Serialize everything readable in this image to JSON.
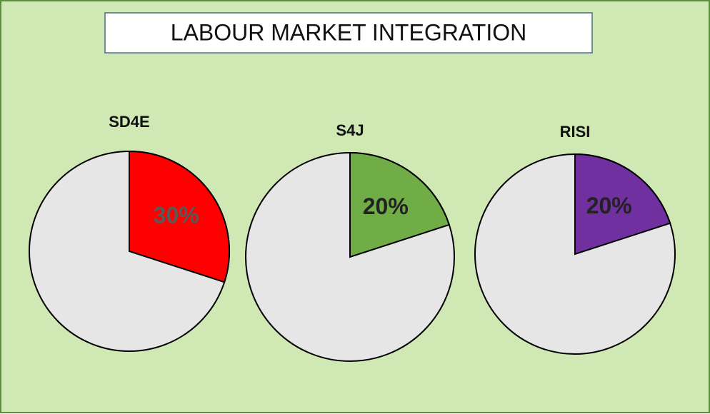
{
  "title": "LABOUR MARKET INTEGRATION",
  "chart_data": [
    {
      "type": "pie",
      "title": "SD4E",
      "values": [
        30
      ],
      "value_labels": [
        "30%"
      ],
      "colors": [
        "#ff0000"
      ],
      "rest_color": "#e6e6e6",
      "label_color": "#595959"
    },
    {
      "type": "pie",
      "title": "S4J",
      "values": [
        20
      ],
      "value_labels": [
        "20%"
      ],
      "colors": [
        "#70ad47"
      ],
      "rest_color": "#e6e6e6",
      "label_color": "#222222"
    },
    {
      "type": "pie",
      "title": "RISI",
      "values": [
        20
      ],
      "value_labels": [
        "20%"
      ],
      "colors": [
        "#7030a0"
      ],
      "rest_color": "#e6e6e6",
      "label_color": "#222222"
    }
  ]
}
